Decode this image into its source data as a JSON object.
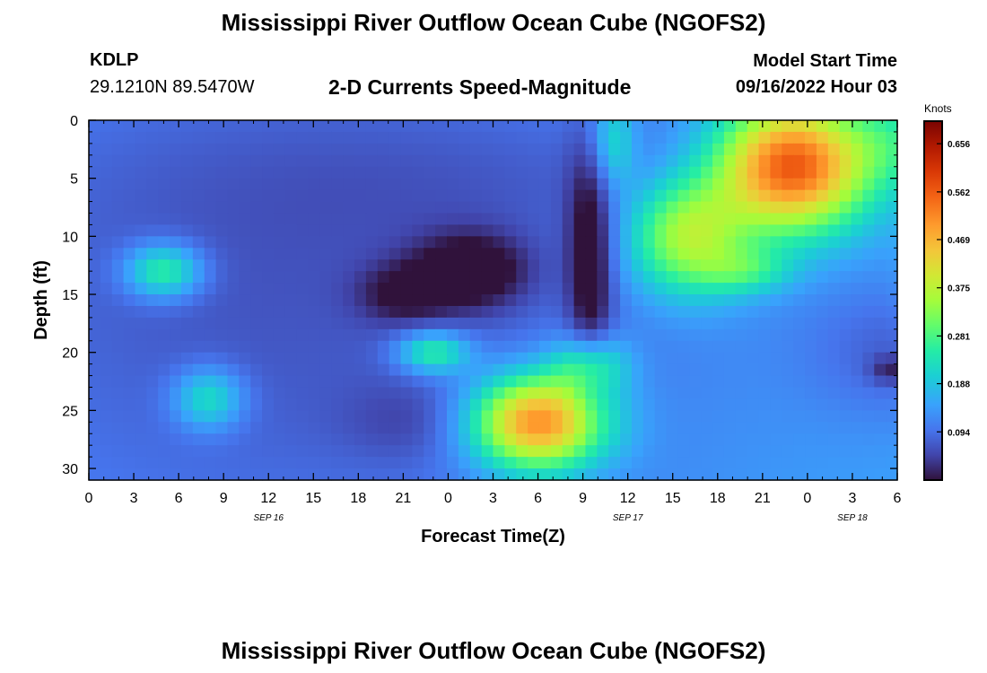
{
  "header": {
    "title": "Mississippi River Outflow Ocean Cube (NGOFS2)",
    "station_id": "KDLP",
    "station_coords": "29.1210N  89.5470W",
    "subtitle": "2-D Currents Speed-Magnitude",
    "model_start_label": "Model Start Time",
    "model_start_value": "09/16/2022 Hour 03"
  },
  "footer": {
    "title": "Mississippi River Outflow Ocean Cube (NGOFS2)"
  },
  "chart_data": {
    "type": "heatmap",
    "xlabel": "Forecast Time(Z)",
    "ylabel": "Depth (ft)",
    "x_tick_labels": [
      "0",
      "3",
      "6",
      "9",
      "12",
      "15",
      "18",
      "21",
      "0",
      "3",
      "6",
      "9",
      "12",
      "15",
      "18",
      "21",
      "0",
      "3",
      "6"
    ],
    "date_labels": [
      {
        "label": "SEP 16",
        "tick_index": 4
      },
      {
        "label": "SEP 17",
        "tick_index": 12
      },
      {
        "label": "SEP 18",
        "tick_index": 17
      }
    ],
    "y_ticks": [
      0,
      5,
      10,
      15,
      20,
      25,
      30
    ],
    "ylim": [
      0,
      31
    ],
    "y_inverted": true,
    "colorbar": {
      "title": "Knots",
      "ticks": [
        "0.656",
        "0.562",
        "0.469",
        "0.375",
        "0.281",
        "0.188",
        "0.094"
      ],
      "min": 0.0,
      "max": 0.7
    },
    "features": [
      {
        "x": 0,
        "y": 0,
        "sx": 80,
        "sy": 60,
        "v": 0.0
      },
      {
        "x": 14,
        "y": 6,
        "sx": 33,
        "sy": 22,
        "v": 0.0,
        "a": -0.04,
        "r": 10
      },
      {
        "x": 33,
        "y": 5,
        "sx": 28,
        "sy": 6,
        "v": 0.0,
        "a": -0.02,
        "r": 18
      },
      {
        "x": 5,
        "y": 13,
        "sx": 2.5,
        "sy": 2.3,
        "v": 0.0,
        "a": 0.18
      },
      {
        "x": 13,
        "y": 22,
        "sx": 30,
        "sy": 28,
        "v": 0.0,
        "a": -0.06,
        "r": 8
      },
      {
        "x": 8,
        "y": 24,
        "sx": 2.3,
        "sy": 2.6,
        "v": 0.0,
        "a": 0.14
      },
      {
        "x": 22,
        "y": 26,
        "sx": 5,
        "sy": 3.5,
        "v": 0.0,
        "a": -0.04
      },
      {
        "x": 23,
        "y": 20,
        "sx": 2.4,
        "sy": 1.8,
        "v": 0.0,
        "a": 0.17
      },
      {
        "x": 25.5,
        "y": 13,
        "sx": 3.8,
        "sy": 3.2,
        "v": 0.0,
        "a": -0.13
      },
      {
        "x": 21,
        "y": 15,
        "sx": 3,
        "sy": 2.5,
        "v": 0.0,
        "a": -0.08
      },
      {
        "x": 33.5,
        "y": 12,
        "sx": 1.5,
        "sy": 10,
        "v": 0.0,
        "a": -0.13
      },
      {
        "x": 30,
        "y": 26,
        "sx": 4.5,
        "sy": 4,
        "v": 0.0,
        "a": 0.41
      },
      {
        "x": 33.5,
        "y": 21,
        "sx": 2.5,
        "sy": 2.5,
        "v": 0.0,
        "a": 0.15
      },
      {
        "x": 47,
        "y": 4,
        "sx": 5,
        "sy": 5.5,
        "v": 0.0,
        "a": 0.45
      },
      {
        "x": 40,
        "y": 10,
        "sx": 4,
        "sy": 5,
        "v": 0.0,
        "a": 0.25
      },
      {
        "x": 44,
        "y": 13,
        "sx": 3,
        "sy": 2,
        "v": 0.0,
        "a": 0.1
      },
      {
        "x": 54,
        "y": 20,
        "sx": 6,
        "sy": 6,
        "v": 0.0,
        "a": -0.06
      },
      {
        "x": 53.5,
        "y": 21.5,
        "sx": 1.3,
        "sy": 1.2,
        "v": 0.0,
        "a": -0.07
      },
      {
        "x": 54,
        "y": 2,
        "sx": 3,
        "sy": 4,
        "v": 0.0,
        "a": 0.08
      },
      {
        "x": 57,
        "y": 12,
        "sx": 2,
        "sy": 8,
        "v": 0.0,
        "a": 0.13
      },
      {
        "x": 35,
        "y": 2,
        "sx": 1.5,
        "sy": 4,
        "v": 0.0,
        "a": 0.12
      }
    ],
    "base_value": 0.155
  }
}
